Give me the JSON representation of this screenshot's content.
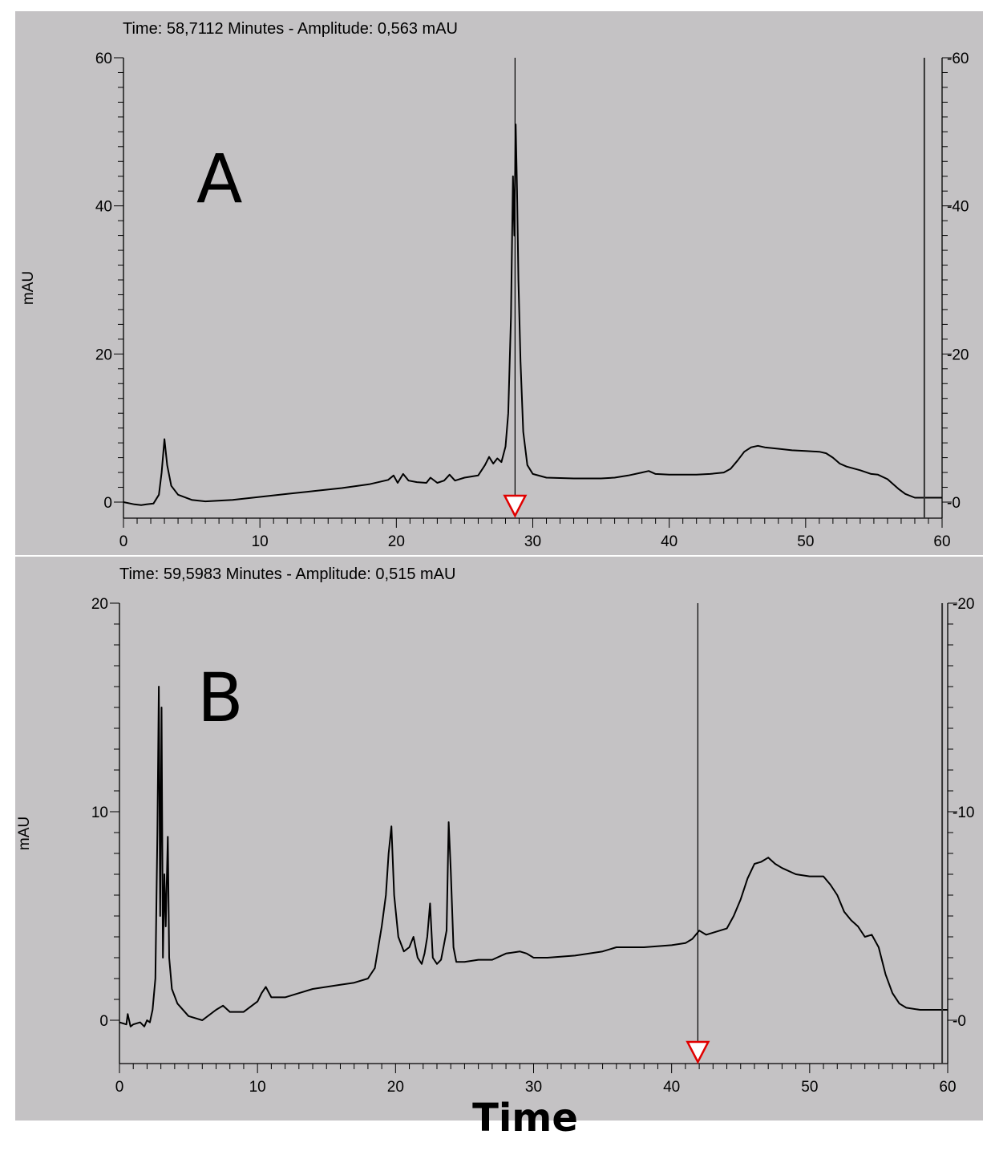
{
  "x_axis_label": "Time",
  "chart_data": [
    {
      "type": "line",
      "panel_label": "A",
      "readout": "Time:  58,7112 Minutes - Amplitude:  0,563 mAU",
      "ylabel": "mAU",
      "xlim": [
        0,
        60
      ],
      "ylim": [
        -2,
        60
      ],
      "x_ticks": [
        0,
        10,
        20,
        30,
        40,
        50,
        60
      ],
      "y_ticks": [
        0,
        20,
        40,
        60
      ],
      "x_tick_labels": [
        "0",
        "10",
        "20",
        "30",
        "40",
        "50",
        "60"
      ],
      "y_tick_labels": [
        "0",
        "20",
        "40",
        "60"
      ],
      "right_tick_labels": [
        "-0",
        "-20",
        "-40",
        "-60"
      ],
      "cursor_time": 28.7,
      "end_time": 58.7,
      "grid": false,
      "series": [
        {
          "x": [
            0,
            0.8,
            1.3,
            1.7,
            2.2,
            2.6,
            2.8,
            3.0,
            3.2,
            3.5,
            4.0,
            5.0,
            6.0,
            8.0,
            10,
            12,
            14,
            16,
            18,
            19.4,
            19.8,
            20.1,
            20.5,
            20.9,
            21.5,
            22.2,
            22.5,
            23.0,
            23.5,
            23.9,
            24.3,
            25.0,
            26.0,
            26.5,
            26.8,
            27.1,
            27.4,
            27.7,
            28.0,
            28.2,
            28.4,
            28.55,
            28.65,
            28.75,
            28.85,
            28.95,
            29.1,
            29.3,
            29.6,
            30.0,
            31.0,
            33.0,
            35.0,
            36.0,
            37.0,
            38.0,
            38.5,
            39.0,
            40.0,
            41.0,
            42.0,
            43.0,
            44.0,
            44.5,
            45.0,
            45.5,
            46.0,
            46.5,
            47.0,
            48.0,
            49.0,
            50.0,
            51.0,
            51.5,
            52.0,
            52.5,
            53.0,
            54.0,
            54.8,
            55.3,
            56.0,
            56.8,
            57.3,
            58.0,
            60.0
          ],
          "y": [
            0,
            -0.3,
            -0.4,
            -0.3,
            -0.2,
            1.0,
            4.0,
            8.5,
            5.0,
            2.2,
            1.0,
            0.3,
            0.1,
            0.3,
            0.7,
            1.1,
            1.5,
            1.9,
            2.4,
            3.0,
            3.6,
            2.6,
            3.8,
            2.9,
            2.7,
            2.6,
            3.3,
            2.6,
            2.9,
            3.7,
            2.9,
            3.3,
            3.6,
            5.0,
            6.1,
            5.2,
            5.9,
            5.4,
            7.5,
            12.0,
            25.0,
            44.0,
            36.0,
            51.0,
            42.0,
            30.0,
            19.0,
            9.5,
            5.0,
            3.8,
            3.3,
            3.2,
            3.2,
            3.3,
            3.6,
            4.0,
            4.2,
            3.8,
            3.7,
            3.7,
            3.7,
            3.8,
            4.0,
            4.5,
            5.6,
            6.8,
            7.4,
            7.6,
            7.4,
            7.2,
            7.0,
            6.9,
            6.8,
            6.6,
            6.0,
            5.2,
            4.8,
            4.3,
            3.8,
            3.7,
            3.1,
            1.8,
            1.1,
            0.6,
            0.6
          ]
        }
      ]
    },
    {
      "type": "line",
      "panel_label": "B",
      "readout": "Time:  59,5983 Minutes - Amplitude:  0,515 mAU",
      "ylabel": "mAU",
      "xlim": [
        0,
        60
      ],
      "ylim": [
        -2,
        20
      ],
      "x_ticks": [
        0,
        10,
        20,
        30,
        40,
        50,
        60
      ],
      "y_ticks": [
        0,
        10,
        20
      ],
      "x_tick_labels": [
        "0",
        "10",
        "20",
        "30",
        "40",
        "50",
        "60"
      ],
      "y_tick_labels": [
        "0",
        "10",
        "20"
      ],
      "right_tick_labels": [
        "-0",
        "-10",
        "-20"
      ],
      "cursor_time": 41.9,
      "end_time": 59.6,
      "grid": false,
      "series": [
        {
          "x": [
            0,
            0.5,
            0.6,
            0.8,
            1.0,
            1.5,
            1.8,
            2.0,
            2.2,
            2.4,
            2.6,
            2.75,
            2.85,
            2.95,
            3.05,
            3.15,
            3.25,
            3.35,
            3.5,
            3.6,
            3.8,
            4.2,
            5.0,
            6.0,
            7.0,
            7.5,
            8.0,
            9.0,
            10.0,
            10.3,
            10.6,
            11.0,
            12.0,
            13.0,
            14.0,
            15.0,
            16.0,
            17.0,
            18.0,
            18.5,
            19.0,
            19.3,
            19.5,
            19.7,
            19.9,
            20.2,
            20.6,
            21.0,
            21.3,
            21.6,
            21.9,
            22.1,
            22.3,
            22.5,
            22.7,
            23.0,
            23.3,
            23.5,
            23.7,
            23.85,
            24.0,
            24.2,
            24.4,
            25.0,
            26.0,
            27.0,
            28.0,
            29.0,
            29.5,
            30.0,
            31.0,
            33.0,
            35.0,
            36.0,
            38.0,
            40.0,
            41.0,
            41.5,
            42.0,
            42.5,
            43.0,
            44.0,
            44.5,
            45.0,
            45.5,
            46.0,
            46.5,
            47.0,
            47.5,
            48.0,
            49.0,
            50.0,
            51.0,
            51.5,
            52.0,
            52.5,
            53.0,
            53.5,
            54.0,
            54.5,
            55.0,
            55.5,
            56.0,
            56.5,
            57.0,
            58.0,
            59.0,
            60.0
          ],
          "y": [
            -0.1,
            -0.2,
            0.3,
            -0.3,
            -0.2,
            -0.1,
            -0.3,
            0.0,
            -0.1,
            0.5,
            2.0,
            9.0,
            16.0,
            5.0,
            15.0,
            3.0,
            7.0,
            4.5,
            8.8,
            3.0,
            1.5,
            0.8,
            0.2,
            0.0,
            0.5,
            0.7,
            0.4,
            0.4,
            0.9,
            1.3,
            1.6,
            1.1,
            1.1,
            1.3,
            1.5,
            1.6,
            1.7,
            1.8,
            2.0,
            2.5,
            4.5,
            6.0,
            8.0,
            9.3,
            6.0,
            4.0,
            3.3,
            3.5,
            4.0,
            3.0,
            2.7,
            3.2,
            4.0,
            5.6,
            3.0,
            2.7,
            2.9,
            3.6,
            4.3,
            9.5,
            7.2,
            3.5,
            2.8,
            2.8,
            2.9,
            2.9,
            3.2,
            3.3,
            3.2,
            3.0,
            3.0,
            3.1,
            3.3,
            3.5,
            3.5,
            3.6,
            3.7,
            3.9,
            4.3,
            4.1,
            4.2,
            4.4,
            5.0,
            5.8,
            6.8,
            7.5,
            7.6,
            7.8,
            7.5,
            7.3,
            7.0,
            6.9,
            6.9,
            6.5,
            6.0,
            5.2,
            4.8,
            4.5,
            4.0,
            4.1,
            3.5,
            2.2,
            1.3,
            0.8,
            0.6,
            0.5,
            0.5,
            0.5
          ]
        }
      ]
    }
  ]
}
